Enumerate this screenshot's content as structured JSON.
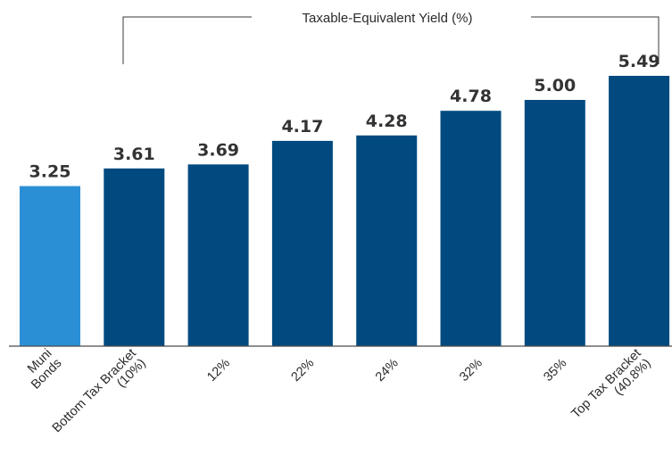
{
  "chart_data": {
    "type": "bar",
    "title": "Taxable-Equivalent Yield (%)",
    "title_applies_to": [
      "Bottom Tax Bracket (10%)",
      "12%",
      "22%",
      "24%",
      "32%",
      "35%",
      "Top Tax Bracket (40.8%)"
    ],
    "categories": [
      [
        "Muni",
        "Bonds"
      ],
      [
        "Bottom Tax Bracket",
        "(10%)"
      ],
      [
        "12%"
      ],
      [
        "22%"
      ],
      [
        "24%"
      ],
      [
        "32%"
      ],
      [
        "35%"
      ],
      [
        "Top Tax Bracket",
        "(40.8%)"
      ]
    ],
    "values": [
      3.25,
      3.61,
      3.69,
      4.17,
      4.28,
      4.78,
      5.0,
      5.49
    ],
    "value_labels": [
      "3.25",
      "3.61",
      "3.69",
      "4.17",
      "4.28",
      "4.78",
      "5.00",
      "5.49"
    ],
    "colors": [
      "#2b8fd6",
      "#004a80",
      "#004a80",
      "#004a80",
      "#004a80",
      "#004a80",
      "#004a80",
      "#004a80"
    ],
    "xlabel": "",
    "ylabel": "",
    "ylim": [
      0,
      5.49
    ],
    "grid": false,
    "legend": "none"
  }
}
